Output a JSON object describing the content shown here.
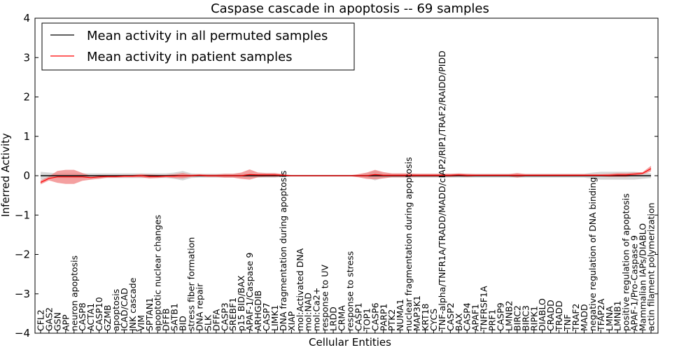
{
  "chart_data": {
    "type": "line",
    "title": "Caspase cascade in apoptosis -- 69 samples",
    "xlabel": "Cellular Entities",
    "ylabel": "Inferred Activity",
    "ylim": [
      -4,
      4
    ],
    "yticks": [
      "4",
      "3",
      "2",
      "1",
      "0",
      "−1",
      "−2",
      "−3",
      "−4"
    ],
    "legend_position": "top-left",
    "categories": [
      "CFL2",
      "GAS2",
      "GSN",
      "APP",
      "neuron apoptosis",
      "CASP8",
      "ACTA1",
      "CASP10",
      "GZMB",
      "apoptosis",
      "ICAD/CAD",
      "JNK cascade",
      "VIM",
      "SPTAN1",
      "apoptotic nuclear changes",
      "DFFB",
      "SATB1",
      "BID",
      "stress fiber formation",
      "DNA repair",
      "SLK",
      "DFFA",
      "CASP3",
      "SREBF1",
      "p15 BID/BAX",
      "APAF-1/Caspase 9",
      "ARHGDIB",
      "CASP7",
      "LIMK1",
      "DNA fragmentation during apoptosis",
      "XIAP",
      "mol:Activated DNA",
      "mol:NAD",
      "mol:Ca2+",
      "response to UV",
      "LRDD",
      "CRMA",
      "response to stress",
      "CASP1",
      "TOP1",
      "CASP6",
      "PARP1",
      "PTK2",
      "NUMA1",
      "nuclear fragmentation during apoptosis",
      "MAP3K1",
      "KRT18",
      "CYCS",
      "TNF-alpha/TNFR1A/TRADD/MADD/cIAP2/RIP1/TRAF2/RAIDD/PIDD",
      "CASP2",
      "BAX",
      "CASP4",
      "APAF1",
      "TNFRSF1A",
      "PRF1",
      "CASP9",
      "LMNB2",
      "BIRC2",
      "BIRC3",
      "RIPK1",
      "DIABLO",
      "CRADD",
      "TRADD",
      "TNF",
      "TRAF2",
      "MADD",
      "negative regulation of DNA binding",
      "TFAP2A",
      "LMNA",
      "LMNB1",
      "positive regulation of apoptosis",
      "APAF-1/Pro-Caspase 9",
      "Mammalian IAPs/DIABLO",
      "actin filament polymerization"
    ],
    "series": [
      {
        "name": "Mean activity in all permuted samples",
        "color": "#000000",
        "band_color": "#c8c8c8",
        "values": [
          0,
          0,
          0,
          0,
          0,
          0,
          0,
          0,
          0,
          0,
          0,
          0,
          0,
          0,
          0,
          0,
          0,
          0,
          0,
          0,
          0,
          0,
          0,
          0,
          0,
          0,
          0,
          0,
          0,
          0,
          0,
          0,
          0,
          0,
          0,
          0,
          0,
          0,
          0,
          0,
          0,
          0,
          0,
          0,
          0,
          0,
          0,
          0,
          0,
          0,
          0,
          0,
          0,
          0,
          0,
          0,
          0,
          0,
          0,
          0,
          0,
          0,
          0,
          0,
          0,
          0,
          0,
          0,
          0,
          0,
          0,
          0,
          0,
          0
        ],
        "band": [
          0.1,
          0.08,
          0.06,
          0.06,
          0.06,
          0.06,
          0.06,
          0.06,
          0.06,
          0.06,
          0.06,
          0.06,
          0.06,
          0.06,
          0.06,
          0.06,
          0.08,
          0.12,
          0.06,
          0.05,
          0.05,
          0.05,
          0.05,
          0.05,
          0.05,
          0.05,
          0.05,
          0.05,
          0.05,
          0.03,
          0.02,
          0.02,
          0.02,
          0.02,
          0.02,
          0.02,
          0.02,
          0.02,
          0.02,
          0.05,
          0.12,
          0.05,
          0.05,
          0.05,
          0.05,
          0.05,
          0.05,
          0.05,
          0.05,
          0.05,
          0.05,
          0.05,
          0.05,
          0.05,
          0.05,
          0.05,
          0.05,
          0.05,
          0.05,
          0.05,
          0.05,
          0.05,
          0.05,
          0.05,
          0.05,
          0.05,
          0.08,
          0.1,
          0.1,
          0.1,
          0.1,
          0.1,
          0.08,
          0.06
        ]
      },
      {
        "name": "Mean activity in patient samples",
        "color": "#ff0000",
        "band_color": "#f08080",
        "values": [
          -0.17,
          -0.07,
          -0.03,
          -0.03,
          -0.03,
          -0.03,
          -0.05,
          -0.03,
          -0.02,
          -0.02,
          -0.01,
          -0.01,
          0,
          -0.02,
          -0.02,
          -0.01,
          -0.01,
          0,
          0,
          0.01,
          0,
          0,
          0,
          0,
          0,
          0.03,
          0.02,
          0.02,
          0.02,
          0.01,
          0,
          0,
          0,
          0,
          0,
          0,
          0,
          0,
          0,
          0,
          0.03,
          0.01,
          0.01,
          0.01,
          0.01,
          0.01,
          0.01,
          0.01,
          0.01,
          0.01,
          0.02,
          0.01,
          0.01,
          0.01,
          0.01,
          0.01,
          0.01,
          0.01,
          0.01,
          0.01,
          0.01,
          0.01,
          0.01,
          0.01,
          0.01,
          0.01,
          0.01,
          0.01,
          0.01,
          0.02,
          0.02,
          0.04,
          0.06,
          0.18
        ],
        "band": [
          0.05,
          0.05,
          0.15,
          0.18,
          0.18,
          0.1,
          0.05,
          0.05,
          0.03,
          0.03,
          0.03,
          0.03,
          0.04,
          0.05,
          0.04,
          0.03,
          0.05,
          0.07,
          0.03,
          0.03,
          0.03,
          0.03,
          0.05,
          0.05,
          0.08,
          0.13,
          0.06,
          0.05,
          0.05,
          0.03,
          0.01,
          0.01,
          0.01,
          0.01,
          0.01,
          0.01,
          0.01,
          0.01,
          0.04,
          0.08,
          0.12,
          0.08,
          0.05,
          0.05,
          0.05,
          0.04,
          0.04,
          0.04,
          0.04,
          0.04,
          0.04,
          0.04,
          0.03,
          0.03,
          0.03,
          0.03,
          0.03,
          0.06,
          0.03,
          0.03,
          0.03,
          0.03,
          0.03,
          0.03,
          0.03,
          0.03,
          0.03,
          0.03,
          0.04,
          0.05,
          0.05,
          0.04,
          0.03,
          0.07
        ]
      }
    ]
  }
}
